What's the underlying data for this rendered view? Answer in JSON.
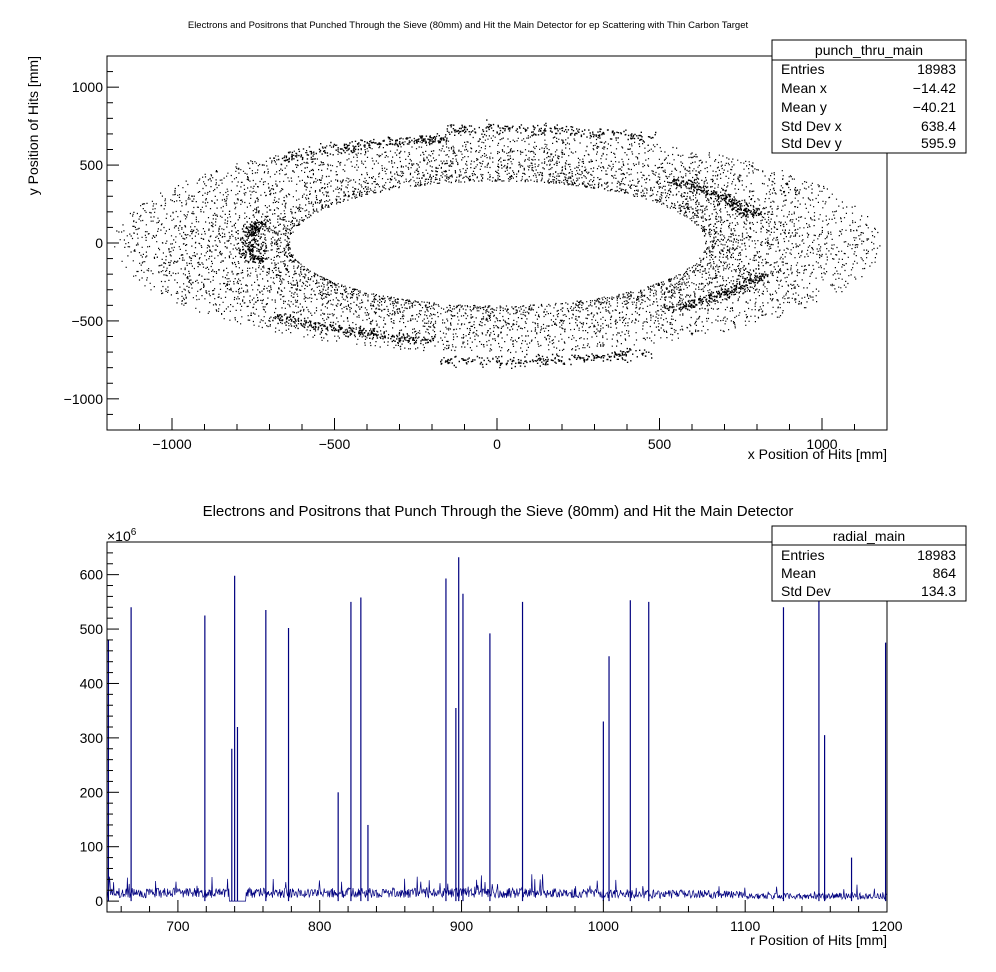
{
  "chart_data": [
    {
      "type": "scatter",
      "title": "Electrons and Positrons that Punched Through the Sieve (80mm) and Hit the Main Detector for ep Scattering with Thin Carbon Target",
      "xlabel": "x Position of Hits [mm]",
      "ylabel": "y Position of Hits [mm]",
      "xlim": [
        -1200,
        1200
      ],
      "ylim": [
        -1200,
        1200
      ],
      "xticks": [
        "−1000",
        "−500",
        "0",
        "500",
        "1000"
      ],
      "yticks": [
        "−1000",
        "−500",
        "0",
        "500",
        "1000"
      ],
      "distribution": {
        "shape": "elliptical ring",
        "inner_radius_x": 640,
        "inner_radius_y": 400,
        "outer_radius_x": 1180,
        "outer_radius_y": 700
      },
      "dense_arcs": [
        {
          "cx": -735,
          "cy": 10
        },
        {
          "cx": -420,
          "cy": 600
        },
        {
          "cx": 160,
          "cy": 700
        },
        {
          "cx": 660,
          "cy": 290
        },
        {
          "cx": 670,
          "cy": -310
        },
        {
          "cx": 150,
          "cy": -720
        },
        {
          "cx": -440,
          "cy": -540
        }
      ],
      "stats": {
        "name": "punch_thru_main",
        "rows": [
          {
            "label": "Entries",
            "value": "18983"
          },
          {
            "label": "Mean x",
            "value": "−14.42"
          },
          {
            "label": "Mean y",
            "value": "−40.21"
          },
          {
            "label": "Std Dev x",
            "value": "638.4"
          },
          {
            "label": "Std Dev y",
            "value": "595.9"
          }
        ]
      }
    },
    {
      "type": "line",
      "title": "Electrons and Positrons that Punch Through the Sieve (80mm) and Hit the Main Detector",
      "xlabel": "r Position of Hits [mm]",
      "ylabel": "",
      "y_exponent_label": "×10",
      "y_exponent_power": "6",
      "xlim": [
        650,
        1200
      ],
      "ylim": [
        -20,
        660
      ],
      "xticks": [
        "700",
        "800",
        "900",
        "1000",
        "1100",
        "1200"
      ],
      "yticks": [
        "0",
        "100",
        "200",
        "300",
        "400",
        "500",
        "600"
      ],
      "color": "#00007f",
      "baseline_level": 15,
      "spikes": [
        {
          "r": 651,
          "h": 480
        },
        {
          "r": 667,
          "h": 540
        },
        {
          "r": 719,
          "h": 525
        },
        {
          "r": 738,
          "h": 280
        },
        {
          "r": 740,
          "h": 598
        },
        {
          "r": 742,
          "h": 320
        },
        {
          "r": 762,
          "h": 535
        },
        {
          "r": 778,
          "h": 502
        },
        {
          "r": 813,
          "h": 200
        },
        {
          "r": 822,
          "h": 550
        },
        {
          "r": 829,
          "h": 558
        },
        {
          "r": 834,
          "h": 140
        },
        {
          "r": 889,
          "h": 593
        },
        {
          "r": 896,
          "h": 355
        },
        {
          "r": 898,
          "h": 632
        },
        {
          "r": 901,
          "h": 565
        },
        {
          "r": 920,
          "h": 492
        },
        {
          "r": 943,
          "h": 550
        },
        {
          "r": 1000,
          "h": 330
        },
        {
          "r": 1004,
          "h": 450
        },
        {
          "r": 1019,
          "h": 553
        },
        {
          "r": 1032,
          "h": 550
        },
        {
          "r": 1127,
          "h": 540
        },
        {
          "r": 1152,
          "h": 560
        },
        {
          "r": 1156,
          "h": 305
        },
        {
          "r": 1175,
          "h": 80
        },
        {
          "r": 1199,
          "h": 475
        }
      ],
      "stats": {
        "name": "radial_main",
        "rows": [
          {
            "label": "Entries",
            "value": "18983"
          },
          {
            "label": "Mean",
            "value": "864"
          },
          {
            "label": "Std Dev",
            "value": "134.3"
          }
        ]
      }
    }
  ]
}
